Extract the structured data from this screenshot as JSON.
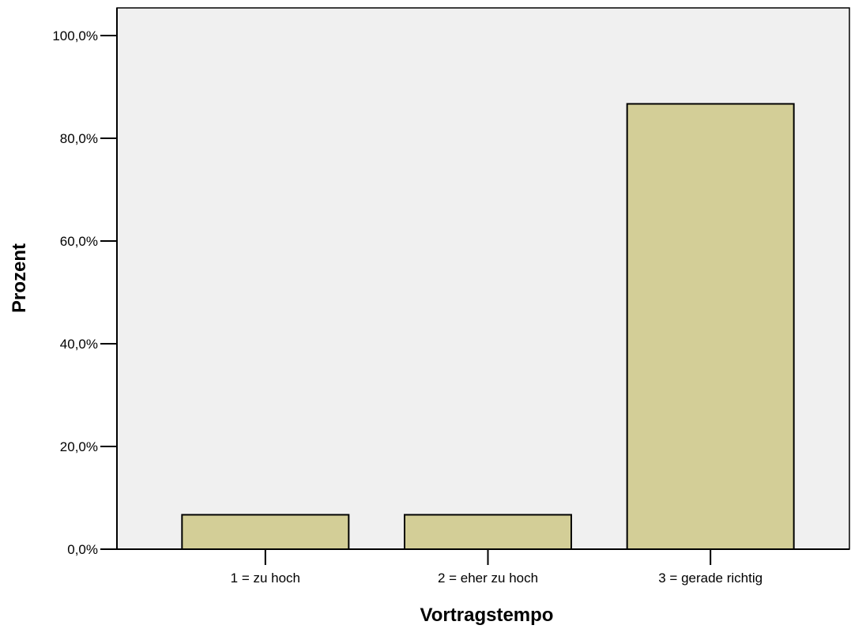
{
  "chart_data": {
    "type": "bar",
    "categories": [
      "1 = zu hoch",
      "2 = eher zu hoch",
      "3 = gerade richtig"
    ],
    "values": [
      6.7,
      6.7,
      86.7
    ],
    "xlabel": "Vortragstempo",
    "ylabel": "Prozent",
    "ylim": [
      0,
      100
    ],
    "yticks": [
      0,
      20,
      40,
      60,
      80,
      100
    ],
    "ytick_labels": [
      "0,0%",
      "20,0%",
      "40,0%",
      "60,0%",
      "80,0%",
      "100,0%"
    ],
    "grid": false,
    "colors": {
      "plot_background": "#f0f0f0",
      "bar_fill": "#d3ce97",
      "bar_stroke": "#000000"
    }
  }
}
